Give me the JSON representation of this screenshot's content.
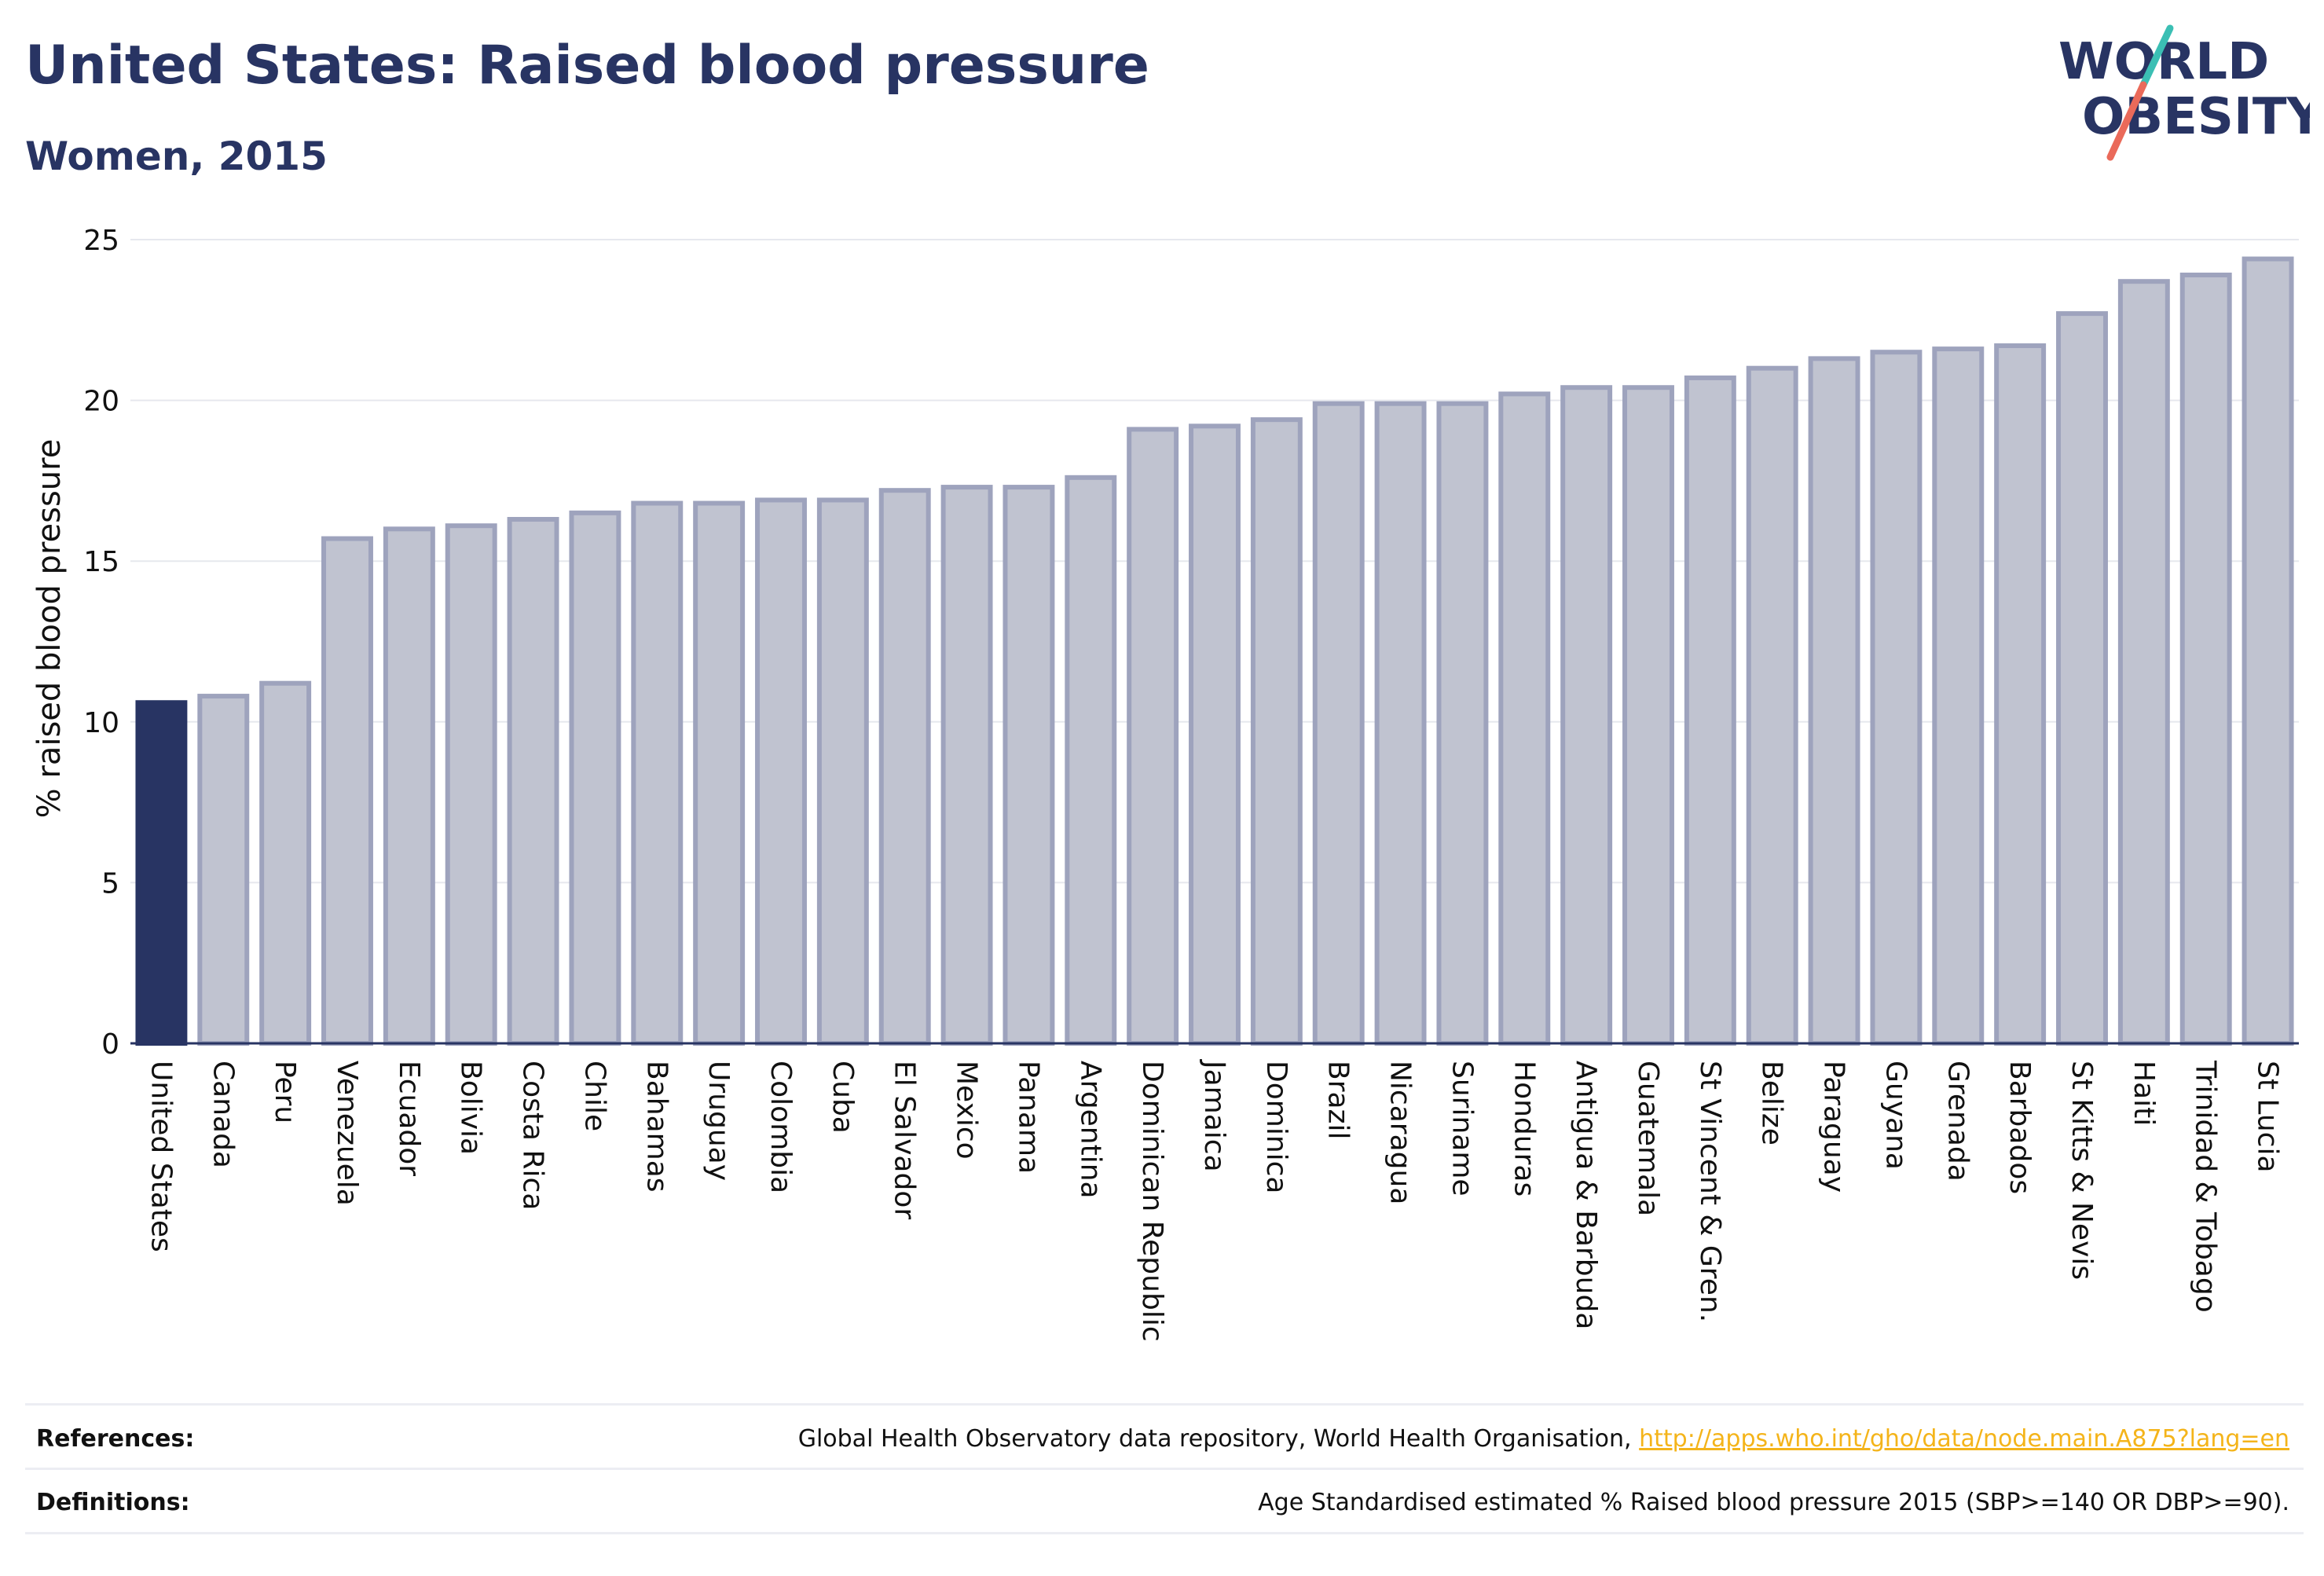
{
  "header": {
    "title": "United States: Raised blood pressure",
    "subtitle": "Women, 2015"
  },
  "logo": {
    "line1": "WORLD",
    "line2": "OBESITY",
    "text_color": "#283463",
    "slash_top_color": "#3bbfb4",
    "slash_bottom_color": "#ea6a5a"
  },
  "chart_data": {
    "type": "bar",
    "ylabel": "% raised blood pressure",
    "xlabel": "",
    "ylim": [
      0,
      25
    ],
    "yticks": [
      0,
      5,
      10,
      15,
      20,
      25
    ],
    "grid": true,
    "highlight_category": "United States",
    "colors": {
      "highlight": "#283463",
      "bar_fill": "#c0c3d0",
      "bar_stroke": "#9ea3bd",
      "grid": "#e6e8ee",
      "axis": "#283463"
    },
    "categories": [
      "United States",
      "Canada",
      "Peru",
      "Venezuela",
      "Ecuador",
      "Bolivia",
      "Costa Rica",
      "Chile",
      "Bahamas",
      "Uruguay",
      "Colombia",
      "Cuba",
      "El Salvador",
      "Mexico",
      "Panama",
      "Argentina",
      "Dominican Republic",
      "Jamaica",
      "Dominica",
      "Brazil",
      "Nicaragua",
      "Suriname",
      "Honduras",
      "Antigua & Barbuda",
      "Guatemala",
      "St Vincent & Gren.",
      "Belize",
      "Paraguay",
      "Guyana",
      "Grenada",
      "Barbados",
      "St Kitts & Nevis",
      "Haiti",
      "Trinidad & Tobago",
      "St Lucia"
    ],
    "values": [
      10.6,
      10.8,
      11.2,
      15.7,
      16.0,
      16.1,
      16.3,
      16.5,
      16.8,
      16.8,
      16.9,
      16.9,
      17.2,
      17.3,
      17.3,
      17.6,
      19.1,
      19.2,
      19.4,
      19.9,
      19.9,
      19.9,
      20.2,
      20.4,
      20.4,
      20.7,
      21.0,
      21.3,
      21.5,
      21.6,
      21.7,
      22.7,
      23.7,
      23.9,
      24.4
    ]
  },
  "footer": {
    "references_label": "References:",
    "references_text": "Global Health Observatory data repository, World Health Organisation,",
    "references_link": "http://apps.who.int/gho/data/node.main.A875?lang=en",
    "definitions_label": "Definitions:",
    "definitions_text": "Age Standardised estimated % Raised blood pressure 2015 (SBP>=140 OR DBP>=90)."
  }
}
